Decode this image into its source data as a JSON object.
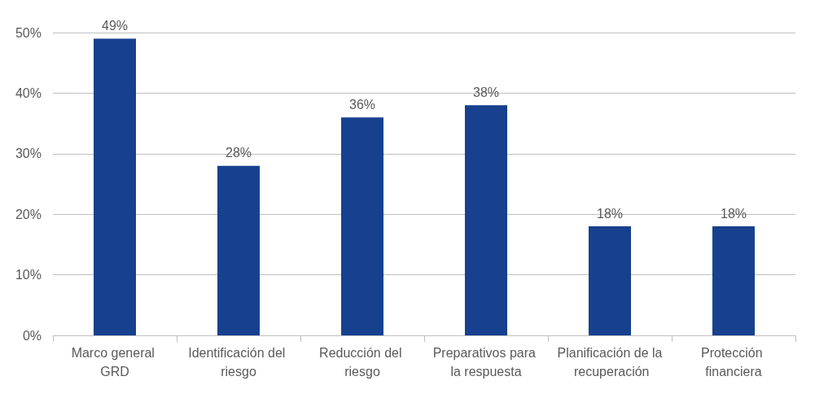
{
  "chart_data": {
    "type": "bar",
    "categories": [
      "Marco general GRD",
      "Identificación del riesgo",
      "Reducción del riesgo",
      "Preparativos para la respuesta",
      "Planificación de la recuperación",
      "Protección financiera"
    ],
    "values": [
      49,
      28,
      36,
      38,
      18,
      18
    ],
    "value_labels": [
      "49%",
      "28%",
      "36%",
      "38%",
      "18%",
      "18%"
    ],
    "color": "#17418e",
    "ylim": [
      0,
      50
    ],
    "yticks": [
      {
        "value": 0,
        "label": "0%"
      },
      {
        "value": 10,
        "label": "10%"
      },
      {
        "value": 20,
        "label": "20%"
      },
      {
        "value": 30,
        "label": "30%"
      },
      {
        "value": 40,
        "label": "40%"
      },
      {
        "value": 50,
        "label": "50%"
      }
    ],
    "grid": "y"
  }
}
